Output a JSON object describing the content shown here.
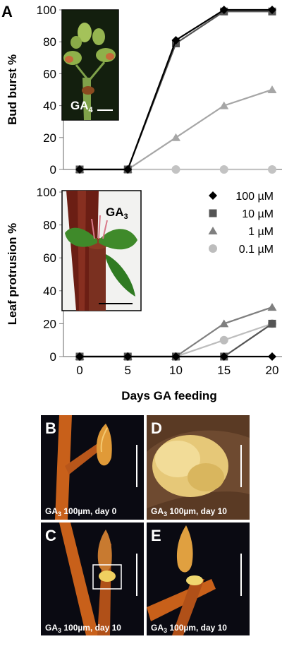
{
  "chart_data": [
    {
      "type": "line",
      "panel": "A",
      "x": [
        0,
        5,
        10,
        15,
        20
      ],
      "ylabel": "Bud burst %",
      "ylim": [
        0,
        100
      ],
      "yticks": [
        "0",
        "20",
        "40",
        "60",
        "80",
        "100"
      ],
      "inset_label": "GA4",
      "series": [
        {
          "name": "100 µM",
          "marker": "diamond",
          "color": "#000000",
          "values": [
            0,
            0,
            81,
            100,
            100
          ]
        },
        {
          "name": "10 µM",
          "marker": "square",
          "color": "#555555",
          "values": [
            0,
            0,
            79,
            99,
            99
          ]
        },
        {
          "name": "1 µM",
          "marker": "triangle",
          "color": "#a6a6a6",
          "values": [
            0,
            0,
            20,
            40,
            50
          ]
        },
        {
          "name": "0.1 µM",
          "marker": "circle",
          "color": "#c3c3c3",
          "values": [
            0,
            0,
            0,
            0,
            0
          ]
        }
      ]
    },
    {
      "type": "line",
      "x": [
        0,
        5,
        10,
        15,
        20
      ],
      "xticks": [
        "0",
        "5",
        "10",
        "15",
        "20"
      ],
      "xlabel": "Days GA feeding",
      "ylabel": "Leaf protrusion %",
      "ylim": [
        0,
        100
      ],
      "yticks": [
        "0",
        "20",
        "40",
        "60",
        "80",
        "100"
      ],
      "inset_label": "GA3",
      "legend": "top-right",
      "series": [
        {
          "name": "100 µM",
          "marker": "diamond",
          "color": "#000000",
          "values": [
            0,
            0,
            0,
            0,
            0
          ]
        },
        {
          "name": "10 µM",
          "marker": "square",
          "color": "#555555",
          "values": [
            0,
            0,
            0,
            0,
            20
          ]
        },
        {
          "name": "1 µM",
          "marker": "triangle",
          "color": "#7f7f7f",
          "values": [
            0,
            0,
            0,
            20,
            30
          ]
        },
        {
          "name": "0.1 µM",
          "marker": "circle",
          "color": "#bdbdbd",
          "values": [
            0,
            0,
            0,
            10,
            20
          ]
        }
      ]
    }
  ],
  "photos": [
    {
      "letter": "B",
      "caption": "GA3 100µm, day 0"
    },
    {
      "letter": "D",
      "caption": "GA3 100µm, day 10"
    },
    {
      "letter": "C",
      "caption": "GA3 100µm, day 10"
    },
    {
      "letter": "E",
      "caption": "GA3 100µm, day 10"
    }
  ],
  "colors": {
    "photo_background": "#0a0a12",
    "branch": "#c8601a",
    "bud": "#e8a040"
  }
}
